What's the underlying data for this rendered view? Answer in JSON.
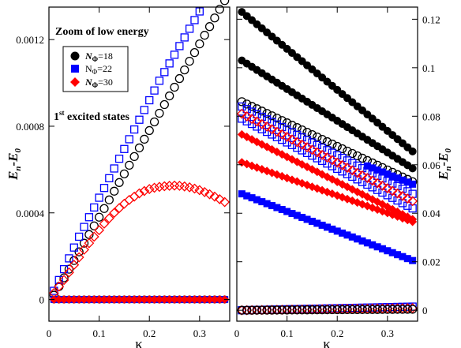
{
  "chart_data": [
    {
      "type": "scatter",
      "title": "",
      "xlabel": "κ",
      "ylabel": "E_n-E_0",
      "xlim": [
        0,
        0.36
      ],
      "ylim": [
        -0.0001,
        0.00135
      ],
      "x_ticks": [
        0,
        0.1,
        0.2,
        0.3
      ],
      "y_ticks": [
        0,
        0.0004,
        0.0008,
        0.0012
      ],
      "x_tick_labels": [
        "0",
        "0.1",
        "0.2",
        "0.3"
      ],
      "y_tick_labels": [
        "0",
        "0.0004",
        "0.0008",
        "0.0012"
      ],
      "annotations": {
        "zoom": "Zoom of low energy",
        "excited_prefix": "1",
        "excited_sup": "st",
        "excited_suffix": " excited states"
      },
      "legend": {
        "placement": "top-left",
        "entries": [
          {
            "prefix": "N",
            "sub": "Φ",
            "suffix": "=18",
            "marker": "circle",
            "color": "#000000"
          },
          {
            "prefix": "N",
            "sub": "Φ",
            "suffix": "=22",
            "marker": "square",
            "color": "#0000ff"
          },
          {
            "prefix": "N",
            "sub": "Φ",
            "suffix": "=30",
            "marker": "diamond",
            "color": "#ff0000"
          }
        ]
      },
      "series": [
        {
          "name": "N_Φ=18",
          "role": "excited",
          "marker": "circle",
          "filled": false,
          "color": "#000000",
          "x_start": 0.01,
          "x_step": 0.01,
          "count": 35,
          "y": [
            2e-05,
            6e-05,
            0.0001,
            0.00014,
            0.00018,
            0.00022,
            0.00026,
            0.0003,
            0.00034,
            0.00038,
            0.00042,
            0.00046,
            0.0005,
            0.00054,
            0.00058,
            0.00062,
            0.00066,
            0.0007,
            0.00074,
            0.00078,
            0.00082,
            0.00086,
            0.0009,
            0.00094,
            0.00098,
            0.00102,
            0.00106,
            0.0011,
            0.00114,
            0.00118,
            0.00122,
            0.00126,
            0.0013,
            0.00134,
            0.00138
          ]
        },
        {
          "name": "N_Φ=22",
          "role": "excited",
          "marker": "square",
          "filled": false,
          "color": "#0000ff",
          "x_start": 0.01,
          "x_step": 0.01,
          "count": 30,
          "y": [
            4e-05,
            9e-05,
            0.00014,
            0.00019,
            0.00024,
            0.00029,
            0.000335,
            0.00038,
            0.000425,
            0.00047,
            0.000515,
            0.00056,
            0.000605,
            0.00065,
            0.000695,
            0.00074,
            0.000785,
            0.00083,
            0.000875,
            0.00092,
            0.000965,
            0.00101,
            0.00105,
            0.00109,
            0.00113,
            0.00117,
            0.00121,
            0.00125,
            0.00129,
            0.00133
          ]
        },
        {
          "name": "N_Φ=30",
          "role": "excited",
          "marker": "diamond",
          "filled": false,
          "color": "#ff0000",
          "x_start": 0.01,
          "x_step": 0.01,
          "count": 35,
          "y": [
            3e-05,
            6e-05,
            9e-05,
            0.000125,
            0.00016,
            0.000195,
            0.00023,
            0.00026,
            0.00029,
            0.00032,
            0.00035,
            0.000375,
            0.0004,
            0.000422,
            0.000442,
            0.00046,
            0.000475,
            0.00049,
            0.000501,
            0.00051,
            0.000516,
            0.00052,
            0.000523,
            0.000525,
            0.000526,
            0.000525,
            0.000522,
            0.000518,
            0.000512,
            0.000505,
            0.000496,
            0.000486,
            0.000475,
            0.000463,
            0.00045
          ]
        },
        {
          "name": "N_Φ=18",
          "role": "ground",
          "marker": "circle",
          "filled": true,
          "color": "#000000",
          "x_start": 0.01,
          "x_step": 0.01,
          "count": 35,
          "y_const": 0
        },
        {
          "name": "N_Φ=22",
          "role": "ground",
          "marker": "square",
          "filled": true,
          "color": "#0000ff",
          "x_start": 0.01,
          "x_step": 0.01,
          "count": 35,
          "y_const": 0
        },
        {
          "name": "N_Φ=30",
          "role": "ground",
          "marker": "diamond",
          "filled": true,
          "color": "#ff0000",
          "x_start": 0.01,
          "x_step": 0.01,
          "count": 35,
          "y_const": 0
        }
      ]
    },
    {
      "type": "scatter",
      "title": "",
      "xlabel": "κ",
      "ylabel": "E_n-E_0",
      "xlim": [
        0,
        0.36
      ],
      "ylim": [
        -0.0045,
        0.125
      ],
      "x_ticks": [
        0,
        0.1,
        0.2,
        0.3
      ],
      "y_ticks": [
        0,
        0.02,
        0.04,
        0.06,
        0.08,
        0.1,
        0.12
      ],
      "x_tick_labels": [
        "0",
        "0.1",
        "0.2",
        "0.3"
      ],
      "y_tick_labels": [
        "0",
        "0.02",
        "0.04",
        "0.06",
        "0.08",
        "0.1",
        "0.12"
      ],
      "series": [
        {
          "name": "N_Φ=18",
          "marker": "circle",
          "filled": true,
          "color": "#000000",
          "x_range": [
            0.01,
            0.35
          ],
          "count": 35,
          "y_range": [
            0.123,
            0.0655
          ]
        },
        {
          "name": "N_Φ=18",
          "marker": "circle",
          "filled": true,
          "color": "#000000",
          "x_range": [
            0.01,
            0.35
          ],
          "count": 35,
          "y_range": [
            0.103,
            0.0585
          ]
        },
        {
          "name": "N_Φ=18",
          "marker": "circle",
          "filled": false,
          "color": "#000000",
          "x_range": [
            0.01,
            0.35
          ],
          "count": 35,
          "y_range": [
            0.086,
            0.053
          ]
        },
        {
          "name": "N_Φ=22",
          "marker": "square",
          "filled": true,
          "color": "#0000ff",
          "x_range": [
            0.26,
            0.35
          ],
          "count": 10,
          "y_range": [
            0.0595,
            0.052
          ]
        },
        {
          "name": "N_Φ=22",
          "marker": "square",
          "filled": false,
          "color": "#0000ff",
          "x_range": [
            0.01,
            0.35
          ],
          "count": 35,
          "y_range": [
            0.084,
            0.048
          ]
        },
        {
          "name": "N_Φ=22",
          "marker": "square",
          "filled": false,
          "color": "#0000ff",
          "x_range": [
            0.01,
            0.35
          ],
          "count": 35,
          "y_range": [
            0.079,
            0.042
          ]
        },
        {
          "name": "N_Φ=30",
          "marker": "diamond",
          "filled": false,
          "color": "#ff0000",
          "x_range": [
            0.01,
            0.35
          ],
          "count": 35,
          "y_range": [
            0.081,
            0.045
          ]
        },
        {
          "name": "N_Φ=30",
          "marker": "diamond",
          "filled": true,
          "color": "#ff0000",
          "x_range": [
            0.01,
            0.35
          ],
          "count": 35,
          "y_range": [
            0.0725,
            0.0375
          ]
        },
        {
          "name": "N_Φ=30",
          "marker": "diamond",
          "filled": true,
          "color": "#ff0000",
          "x_range": [
            0.01,
            0.35
          ],
          "count": 35,
          "y_range": [
            0.061,
            0.0365
          ]
        },
        {
          "name": "N_Φ=22",
          "marker": "square",
          "filled": true,
          "color": "#0000ff",
          "x_range": [
            0.01,
            0.35
          ],
          "count": 35,
          "y_range": [
            0.048,
            0.0205
          ]
        },
        {
          "name": "N_Φ=22",
          "marker": "square",
          "filled": false,
          "color": "#0000ff",
          "x_range": [
            0.01,
            0.35
          ],
          "count": 35,
          "y_range": [
            0.0,
            0.0015
          ]
        },
        {
          "name": "N_Φ=30",
          "marker": "diamond",
          "filled": false,
          "color": "#ff0000",
          "x_range": [
            0.01,
            0.35
          ],
          "count": 35,
          "y_range": [
            0.0,
            0.0009
          ]
        },
        {
          "name": "N_Φ=18",
          "marker": "circle",
          "filled": false,
          "color": "#000000",
          "x_range": [
            0.01,
            0.35
          ],
          "count": 35,
          "y_range": [
            0.0,
            0.0004
          ]
        }
      ]
    }
  ]
}
